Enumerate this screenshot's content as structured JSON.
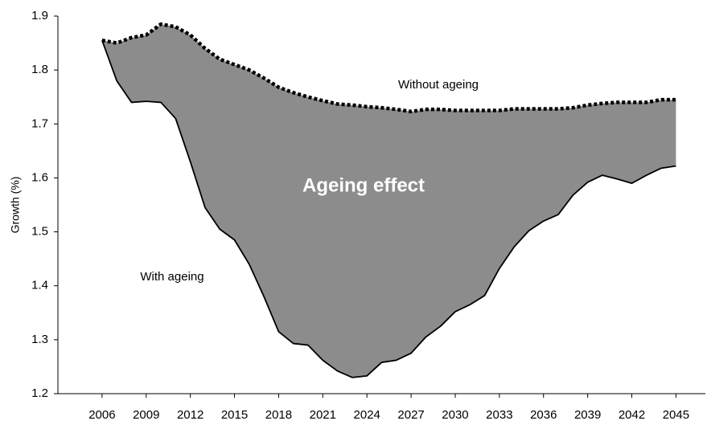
{
  "chart_data": {
    "type": "area-between",
    "y_label": "Growth (%)",
    "annotations": [
      "Without ageing",
      "With ageing",
      "Ageing effect"
    ],
    "x": [
      2006,
      2007,
      2008,
      2009,
      2010,
      2011,
      2012,
      2013,
      2014,
      2015,
      2016,
      2017,
      2018,
      2019,
      2020,
      2021,
      2022,
      2023,
      2024,
      2025,
      2026,
      2027,
      2028,
      2029,
      2030,
      2031,
      2032,
      2033,
      2034,
      2035,
      2036,
      2037,
      2038,
      2039,
      2040,
      2041,
      2042,
      2043,
      2044,
      2045
    ],
    "series": [
      {
        "name": "Without ageing",
        "color": "#000000",
        "values": [
          1.855,
          1.85,
          1.86,
          1.865,
          1.885,
          1.88,
          1.865,
          1.84,
          1.82,
          1.81,
          1.8,
          1.785,
          1.768,
          1.758,
          1.75,
          1.743,
          1.737,
          1.735,
          1.732,
          1.73,
          1.727,
          1.723,
          1.727,
          1.727,
          1.725,
          1.725,
          1.725,
          1.725,
          1.728,
          1.728,
          1.728,
          1.728,
          1.73,
          1.735,
          1.738,
          1.74,
          1.74,
          1.74,
          1.745,
          1.745
        ]
      },
      {
        "name": "With ageing",
        "color": "#000000",
        "values": [
          1.855,
          1.78,
          1.74,
          1.742,
          1.74,
          1.71,
          1.63,
          1.545,
          1.505,
          1.485,
          1.44,
          1.38,
          1.315,
          1.293,
          1.29,
          1.262,
          1.242,
          1.23,
          1.233,
          1.258,
          1.262,
          1.275,
          1.305,
          1.325,
          1.352,
          1.365,
          1.382,
          1.432,
          1.472,
          1.502,
          1.52,
          1.532,
          1.568,
          1.592,
          1.605,
          1.598,
          1.59,
          1.605,
          1.618,
          1.622
        ]
      }
    ],
    "fill_color": "#8c8c8c",
    "xlim": [
      2003,
      2047
    ],
    "xticks": [
      2006,
      2009,
      2012,
      2015,
      2018,
      2021,
      2024,
      2027,
      2030,
      2033,
      2036,
      2039,
      2042,
      2045
    ],
    "ylim": [
      1.2,
      1.9
    ],
    "yticks": [
      1.2,
      1.3,
      1.4,
      1.5,
      1.6,
      1.7,
      1.8,
      1.9
    ]
  }
}
